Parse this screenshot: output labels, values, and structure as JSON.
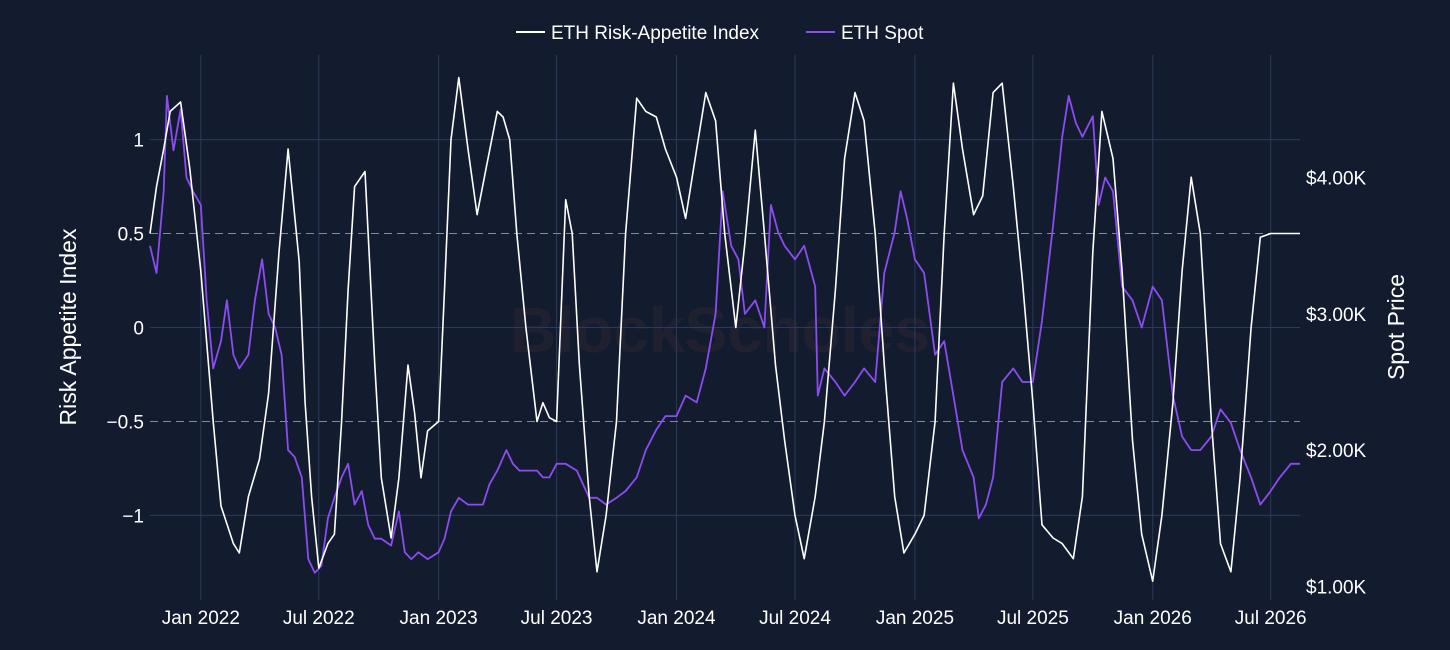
{
  "chart_data": {
    "type": "line",
    "watermark": "BlockScholes",
    "legend": {
      "placement": "top-center",
      "entries": [
        {
          "name": "ETH Risk-Appetite Index",
          "color": "#ffffff"
        },
        {
          "name": "ETH Spot",
          "color": "#8b4cf0"
        }
      ]
    },
    "x_axis": {
      "range": [
        "2021-10-15",
        "2026-08-15"
      ],
      "ticks": [
        {
          "date": "2022-01-01",
          "label": "Jan 2022"
        },
        {
          "date": "2022-07-01",
          "label": "Jul 2022"
        },
        {
          "date": "2023-01-01",
          "label": "Jan 2023"
        },
        {
          "date": "2023-07-01",
          "label": "Jul 2023"
        },
        {
          "date": "2024-01-01",
          "label": "Jan 2024"
        },
        {
          "date": "2024-07-01",
          "label": "Jul 2024"
        },
        {
          "date": "2025-01-01",
          "label": "Jan 2025"
        },
        {
          "date": "2025-07-01",
          "label": "Jul 2025"
        },
        {
          "date": "2026-01-01",
          "label": "Jan 2026"
        },
        {
          "date": "2026-07-01",
          "label": "Jul 2026"
        }
      ]
    },
    "y_left": {
      "title": "Risk Appetite Index",
      "range": [
        -1.45,
        1.45
      ],
      "ticks": [
        {
          "value": 1,
          "label": "1"
        },
        {
          "value": 0.5,
          "label": "0.5"
        },
        {
          "value": 0,
          "label": "0"
        },
        {
          "value": -0.5,
          "label": "−0.5"
        },
        {
          "value": -1,
          "label": "−1"
        }
      ],
      "dashed_reference_lines": [
        0.5,
        -0.5
      ]
    },
    "y_right": {
      "title": "Spot Price",
      "range": [
        900,
        4900
      ],
      "ticks": [
        {
          "value": 4000,
          "label": "$4.00K"
        },
        {
          "value": 3000,
          "label": "$3.00K"
        },
        {
          "value": 2000,
          "label": "$2.00K"
        },
        {
          "value": 1000,
          "label": "$1.00K"
        }
      ]
    },
    "grid": true,
    "series": [
      {
        "name": "ETH Risk-Appetite Index",
        "axis": "left",
        "color": "#ffffff",
        "x": [
          "2021-10-15",
          "2021-10-25",
          "2021-11-05",
          "2021-11-15",
          "2021-12-01",
          "2021-12-15",
          "2022-01-01",
          "2022-01-20",
          "2022-02-01",
          "2022-02-20",
          "2022-03-01",
          "2022-03-15",
          "2022-04-01",
          "2022-04-15",
          "2022-05-01",
          "2022-05-15",
          "2022-06-01",
          "2022-06-10",
          "2022-06-20",
          "2022-07-01",
          "2022-07-15",
          "2022-07-25",
          "2022-08-05",
          "2022-08-15",
          "2022-08-25",
          "2022-09-10",
          "2022-09-25",
          "2022-10-05",
          "2022-10-20",
          "2022-11-01",
          "2022-11-15",
          "2022-11-25",
          "2022-12-05",
          "2022-12-15",
          "2023-01-01",
          "2023-01-10",
          "2023-01-20",
          "2023-02-01",
          "2023-02-15",
          "2023-03-01",
          "2023-03-15",
          "2023-04-01",
          "2023-04-10",
          "2023-04-20",
          "2023-05-01",
          "2023-05-15",
          "2023-06-01",
          "2023-06-10",
          "2023-06-20",
          "2023-07-01",
          "2023-07-15",
          "2023-07-25",
          "2023-08-05",
          "2023-08-20",
          "2023-09-01",
          "2023-09-15",
          "2023-10-01",
          "2023-10-15",
          "2023-11-01",
          "2023-11-15",
          "2023-12-01",
          "2023-12-15",
          "2024-01-01",
          "2024-01-15",
          "2024-02-01",
          "2024-02-15",
          "2024-03-01",
          "2024-03-15",
          "2024-04-01",
          "2024-04-15",
          "2024-05-01",
          "2024-05-15",
          "2024-06-01",
          "2024-06-15",
          "2024-07-01",
          "2024-07-15",
          "2024-08-01",
          "2024-08-15",
          "2024-09-01",
          "2024-09-15",
          "2024-10-01",
          "2024-10-15",
          "2024-11-01",
          "2024-11-15",
          "2024-12-01",
          "2024-12-15",
          "2025-01-01",
          "2025-01-15",
          "2025-02-01",
          "2025-02-15",
          "2025-03-01",
          "2025-03-15",
          "2025-04-01",
          "2025-04-15",
          "2025-05-01",
          "2025-05-15",
          "2025-06-01",
          "2025-06-15",
          "2025-07-01",
          "2025-07-15",
          "2025-08-01",
          "2025-08-15",
          "2025-09-01",
          "2025-09-15",
          "2025-10-01",
          "2025-10-15",
          "2025-11-01",
          "2025-11-15",
          "2025-12-01",
          "2025-12-15",
          "2026-01-01",
          "2026-01-15",
          "2026-02-01",
          "2026-02-15",
          "2026-03-01",
          "2026-03-15",
          "2026-04-01",
          "2026-04-15",
          "2026-05-01",
          "2026-05-15",
          "2026-06-01",
          "2026-06-15",
          "2026-07-01",
          "2026-07-15",
          "2026-08-01",
          "2026-08-15"
        ],
        "values": [
          0.5,
          0.75,
          0.95,
          1.15,
          1.2,
          0.85,
          0.3,
          -0.5,
          -0.95,
          -1.15,
          -1.2,
          -0.9,
          -0.7,
          -0.35,
          0.4,
          0.95,
          0.35,
          -0.4,
          -0.9,
          -1.28,
          -1.15,
          -1.1,
          -0.5,
          0.2,
          0.75,
          0.83,
          -0.2,
          -0.8,
          -1.12,
          -0.8,
          -0.2,
          -0.45,
          -0.8,
          -0.55,
          -0.5,
          0.2,
          1.0,
          1.33,
          0.95,
          0.6,
          0.85,
          1.15,
          1.12,
          1.0,
          0.5,
          0.0,
          -0.5,
          -0.4,
          -0.48,
          -0.5,
          0.68,
          0.5,
          -0.2,
          -0.9,
          -1.3,
          -1.0,
          -0.5,
          0.5,
          1.22,
          1.15,
          1.12,
          0.95,
          0.8,
          0.58,
          0.95,
          1.25,
          1.1,
          0.5,
          0.0,
          0.45,
          1.05,
          0.5,
          -0.2,
          -0.6,
          -1.0,
          -1.23,
          -0.9,
          -0.5,
          0.2,
          0.9,
          1.25,
          1.1,
          0.5,
          -0.2,
          -0.9,
          -1.2,
          -1.1,
          -1.0,
          -0.5,
          0.5,
          1.3,
          0.95,
          0.6,
          0.7,
          1.25,
          1.3,
          0.75,
          0.25,
          -0.4,
          -1.05,
          -1.12,
          -1.15,
          -1.23,
          -0.9,
          0.4,
          1.15,
          0.9,
          0.3,
          -0.6,
          -1.1,
          -1.35,
          -1.0,
          -0.4,
          0.3,
          0.8,
          0.5,
          -0.5,
          -1.15,
          -1.3,
          -0.8,
          0.0,
          0.48,
          0.5,
          0.5,
          0.5,
          0.5
        ]
      },
      {
        "name": "ETH Spot",
        "axis": "right",
        "color": "#8b4cf0",
        "x": [
          "2021-10-15",
          "2021-10-25",
          "2021-11-05",
          "2021-11-10",
          "2021-11-20",
          "2021-12-01",
          "2021-12-10",
          "2021-12-20",
          "2022-01-01",
          "2022-01-10",
          "2022-01-20",
          "2022-02-01",
          "2022-02-10",
          "2022-02-20",
          "2022-03-01",
          "2022-03-15",
          "2022-03-25",
          "2022-04-05",
          "2022-04-15",
          "2022-04-25",
          "2022-05-05",
          "2022-05-15",
          "2022-05-25",
          "2022-06-05",
          "2022-06-15",
          "2022-06-25",
          "2022-07-05",
          "2022-07-15",
          "2022-07-25",
          "2022-08-05",
          "2022-08-15",
          "2022-08-25",
          "2022-09-05",
          "2022-09-15",
          "2022-09-25",
          "2022-10-05",
          "2022-10-20",
          "2022-11-01",
          "2022-11-10",
          "2022-11-20",
          "2022-12-01",
          "2022-12-15",
          "2023-01-01",
          "2023-01-10",
          "2023-01-20",
          "2023-02-01",
          "2023-02-15",
          "2023-03-01",
          "2023-03-10",
          "2023-03-20",
          "2023-04-01",
          "2023-04-15",
          "2023-04-25",
          "2023-05-05",
          "2023-05-20",
          "2023-06-01",
          "2023-06-10",
          "2023-06-20",
          "2023-07-01",
          "2023-07-15",
          "2023-08-01",
          "2023-08-20",
          "2023-09-01",
          "2023-09-15",
          "2023-10-01",
          "2023-10-15",
          "2023-11-01",
          "2023-11-15",
          "2023-12-01",
          "2023-12-15",
          "2024-01-01",
          "2024-01-15",
          "2024-02-01",
          "2024-02-15",
          "2024-03-01",
          "2024-03-12",
          "2024-03-25",
          "2024-04-05",
          "2024-04-15",
          "2024-05-01",
          "2024-05-15",
          "2024-05-25",
          "2024-06-05",
          "2024-06-15",
          "2024-07-01",
          "2024-07-15",
          "2024-08-01",
          "2024-08-05",
          "2024-08-15",
          "2024-09-01",
          "2024-09-15",
          "2024-10-01",
          "2024-10-15",
          "2024-11-01",
          "2024-11-15",
          "2024-12-01",
          "2024-12-10",
          "2024-12-20",
          "2025-01-01",
          "2025-01-15",
          "2025-02-01",
          "2025-02-15",
          "2025-03-01",
          "2025-03-15",
          "2025-04-01",
          "2025-04-09",
          "2025-04-20",
          "2025-05-01",
          "2025-05-15",
          "2025-06-01",
          "2025-06-15",
          "2025-07-01",
          "2025-07-15",
          "2025-08-01",
          "2025-08-15",
          "2025-08-25",
          "2025-09-05",
          "2025-09-15",
          "2025-10-01",
          "2025-10-10",
          "2025-10-20",
          "2025-11-01",
          "2025-11-15",
          "2025-12-01",
          "2025-12-15",
          "2026-01-01",
          "2026-01-15",
          "2026-02-01",
          "2026-02-15",
          "2026-03-01",
          "2026-03-15",
          "2026-04-01",
          "2026-04-15",
          "2026-05-01",
          "2026-05-15",
          "2026-06-01",
          "2026-06-15",
          "2026-07-01",
          "2026-07-15",
          "2026-08-01",
          "2026-08-15"
        ],
        "values": [
          3500,
          3300,
          3900,
          4600,
          4200,
          4500,
          4000,
          3900,
          3800,
          3100,
          2600,
          2800,
          3100,
          2700,
          2600,
          2700,
          3100,
          3400,
          3000,
          2900,
          2700,
          2000,
          1950,
          1800,
          1200,
          1100,
          1150,
          1500,
          1650,
          1800,
          1900,
          1600,
          1700,
          1450,
          1350,
          1350,
          1300,
          1550,
          1250,
          1200,
          1250,
          1200,
          1250,
          1350,
          1550,
          1650,
          1600,
          1600,
          1600,
          1750,
          1850,
          2000,
          1900,
          1850,
          1850,
          1850,
          1800,
          1800,
          1900,
          1900,
          1850,
          1650,
          1650,
          1600,
          1650,
          1700,
          1800,
          2000,
          2150,
          2250,
          2250,
          2400,
          2350,
          2600,
          3000,
          3900,
          3500,
          3400,
          3000,
          3100,
          2900,
          3800,
          3600,
          3500,
          3400,
          3500,
          3200,
          2400,
          2600,
          2500,
          2400,
          2500,
          2600,
          2500,
          3300,
          3600,
          3900,
          3700,
          3400,
          3300,
          2700,
          2800,
          2400,
          2000,
          1800,
          1500,
          1600,
          1800,
          2500,
          2600,
          2500,
          2500,
          2950,
          3650,
          4300,
          4600,
          4400,
          4300,
          4450,
          3800,
          4000,
          3900,
          3200,
          3100,
          2900,
          3200,
          3100,
          2400,
          2100,
          2000,
          2000,
          2100,
          2300,
          2200,
          2000,
          1800,
          1600,
          1700,
          1800,
          1900,
          1900
        ]
      }
    ]
  }
}
